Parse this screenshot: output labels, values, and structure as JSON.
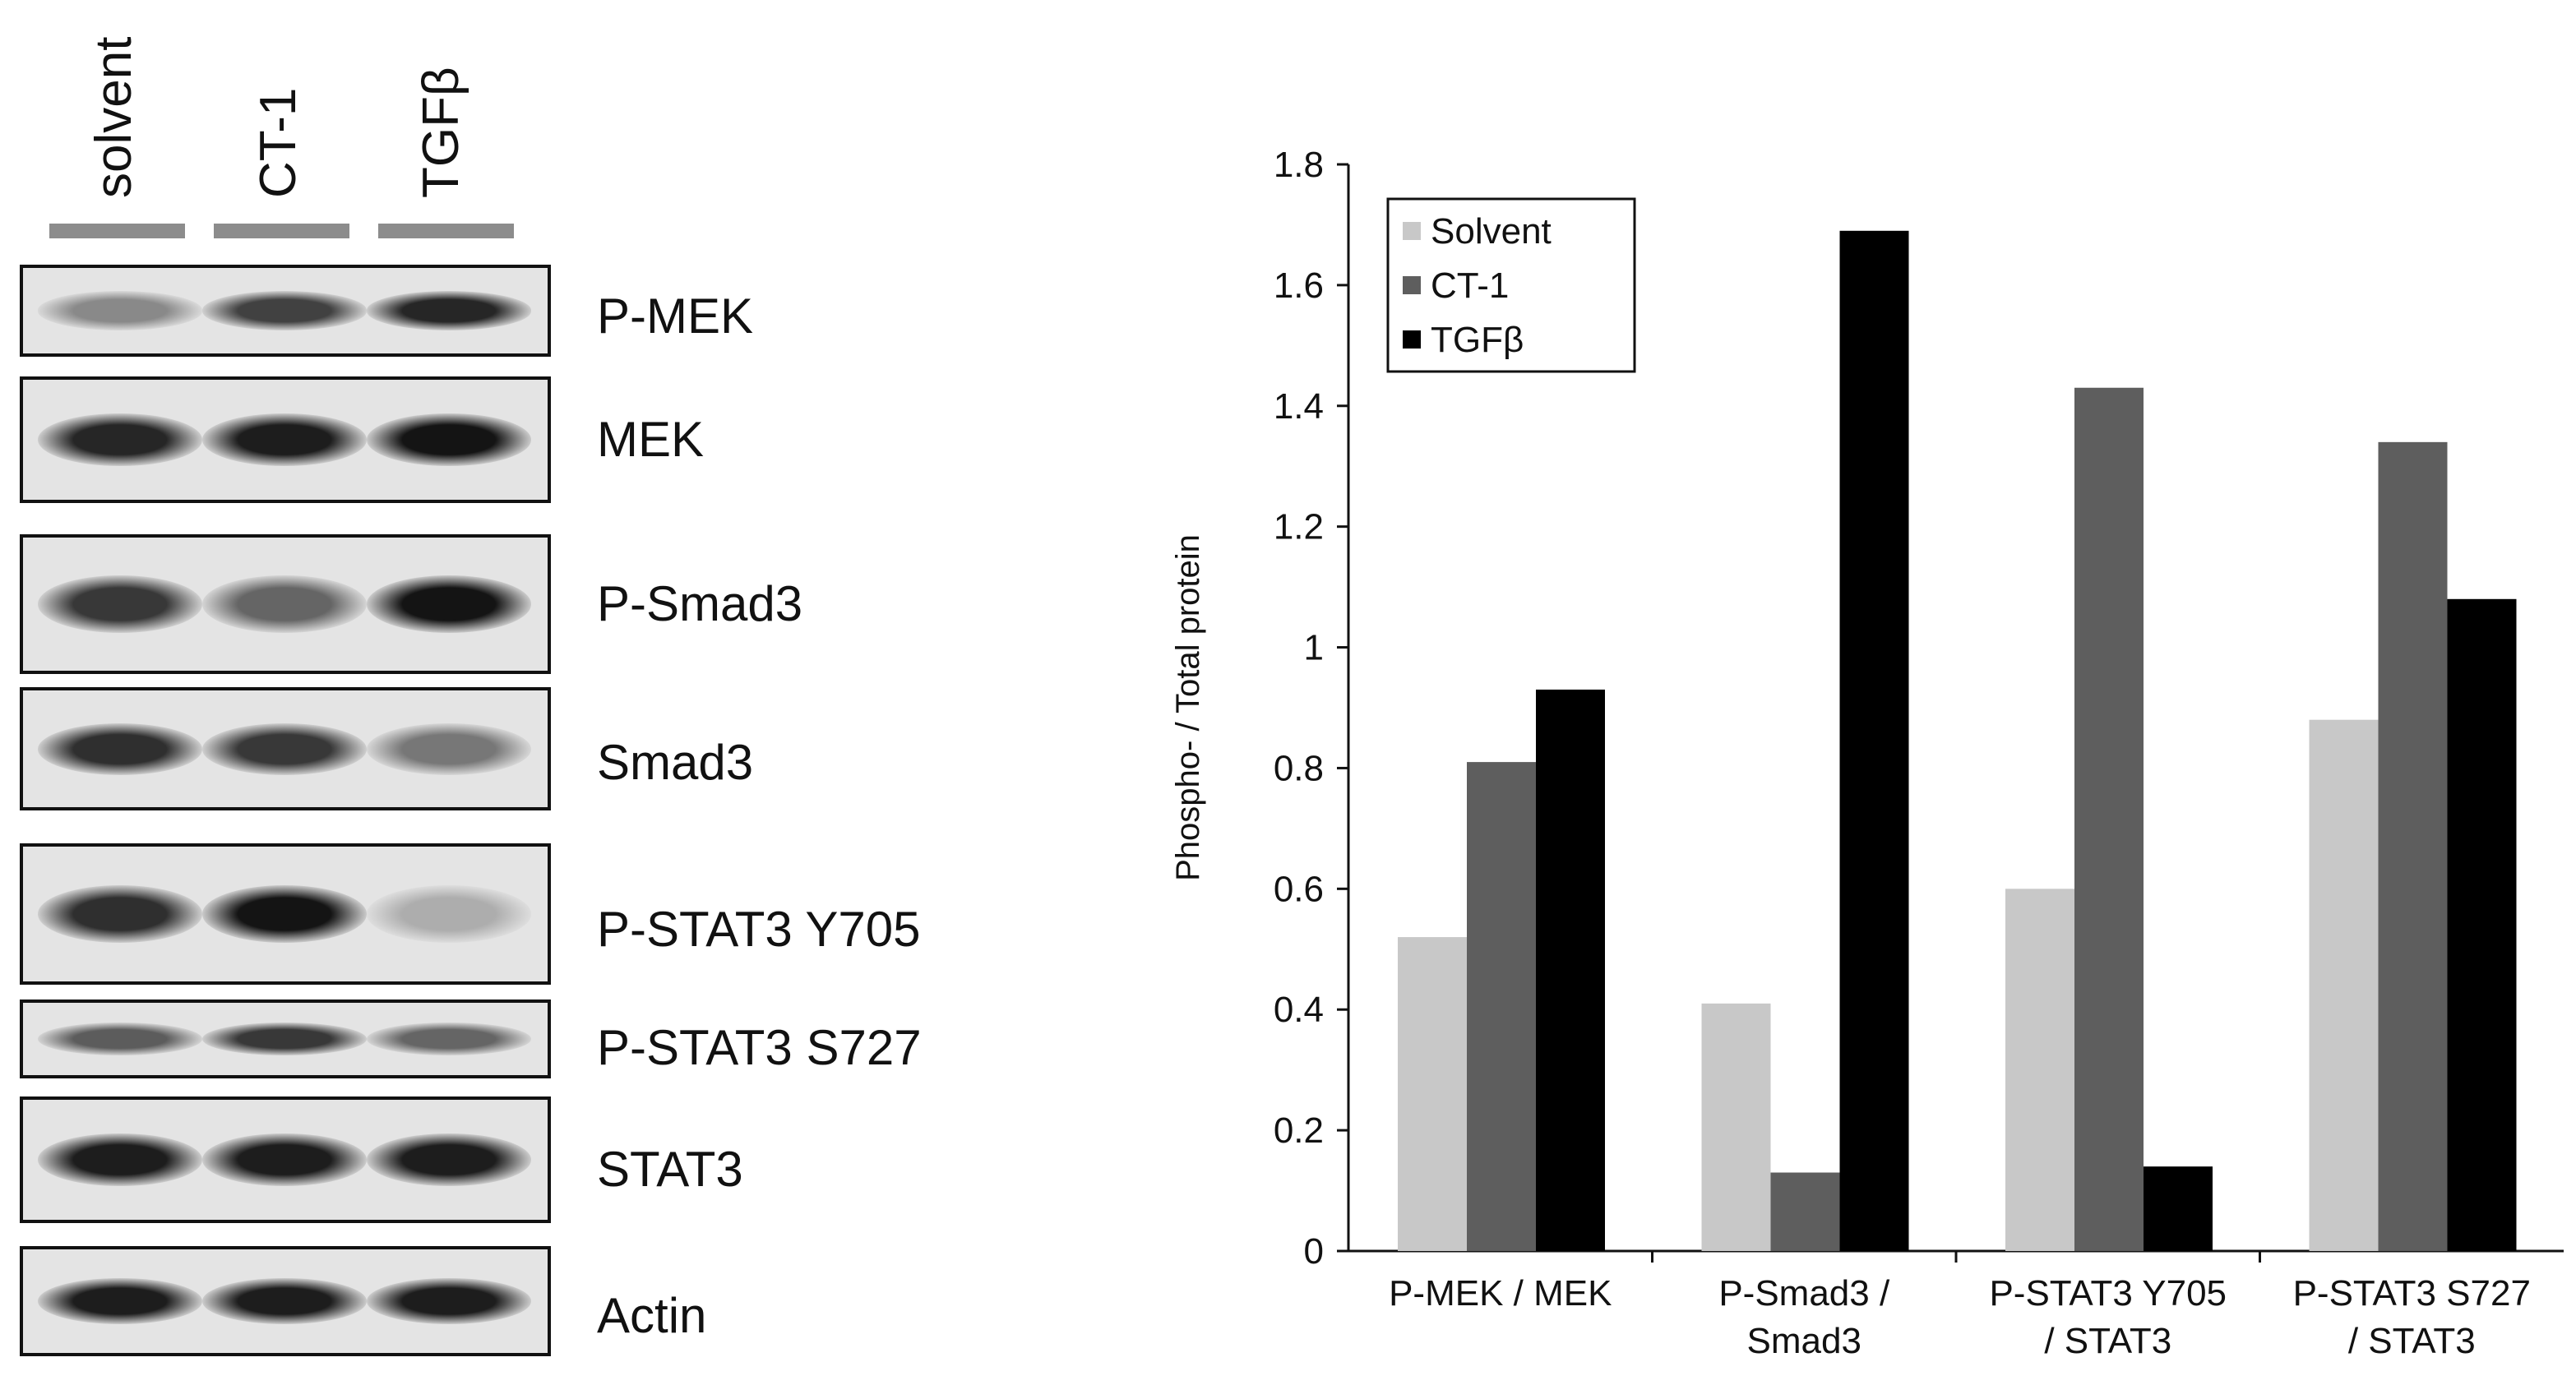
{
  "blot": {
    "lanes": [
      "solvent",
      "CT-1",
      "TGFβ"
    ],
    "lane_bar_color": "#8c8c8c",
    "strips": [
      {
        "label": "P-MEK",
        "bands": [
          0.35,
          0.75,
          0.9
        ]
      },
      {
        "label": "MEK",
        "bands": [
          0.9,
          0.95,
          1.0
        ]
      },
      {
        "label": "P-Smad3",
        "bands": [
          0.8,
          0.55,
          1.0
        ]
      },
      {
        "label": "Smad3",
        "bands": [
          0.85,
          0.8,
          0.45
        ]
      },
      {
        "label": "P-STAT3 Y705",
        "bands": [
          0.85,
          1.0,
          0.15
        ]
      },
      {
        "label": "P-STAT3 S727",
        "bands": [
          0.6,
          0.8,
          0.55
        ]
      },
      {
        "label": "STAT3",
        "bands": [
          0.95,
          0.95,
          0.95
        ]
      },
      {
        "label": "Actin",
        "bands": [
          0.95,
          0.95,
          0.95
        ]
      }
    ]
  },
  "chart_data": {
    "type": "bar",
    "categories": [
      [
        "P-MEK / MEK"
      ],
      [
        "P-Smad3 /",
        "Smad3"
      ],
      [
        "P-STAT3 Y705",
        "/ STAT3"
      ],
      [
        "P-STAT3 S727",
        "/ STAT3"
      ]
    ],
    "series": [
      {
        "name": "Solvent",
        "color": "#c8c8c8",
        "values": [
          0.52,
          0.41,
          0.6,
          0.88
        ]
      },
      {
        "name": "CT-1",
        "color": "#5e5e5e",
        "values": [
          0.81,
          0.13,
          1.43,
          1.34
        ]
      },
      {
        "name": "TGFβ",
        "color": "#000000",
        "values": [
          0.93,
          1.69,
          0.14,
          1.08
        ]
      }
    ],
    "ylabel": "Phospho- / Total protein",
    "xlabel": "",
    "ylim": [
      0,
      1.8
    ],
    "yticks": [
      "0",
      "0.2",
      "0.4",
      "0.6",
      "0.8",
      "1",
      "1.2",
      "1.4",
      "1.6",
      "1.8"
    ],
    "ytick_values": [
      0,
      0.2,
      0.4,
      0.6,
      0.8,
      1.0,
      1.2,
      1.4,
      1.6,
      1.8
    ],
    "grid": false,
    "legend_position": "top-left"
  }
}
